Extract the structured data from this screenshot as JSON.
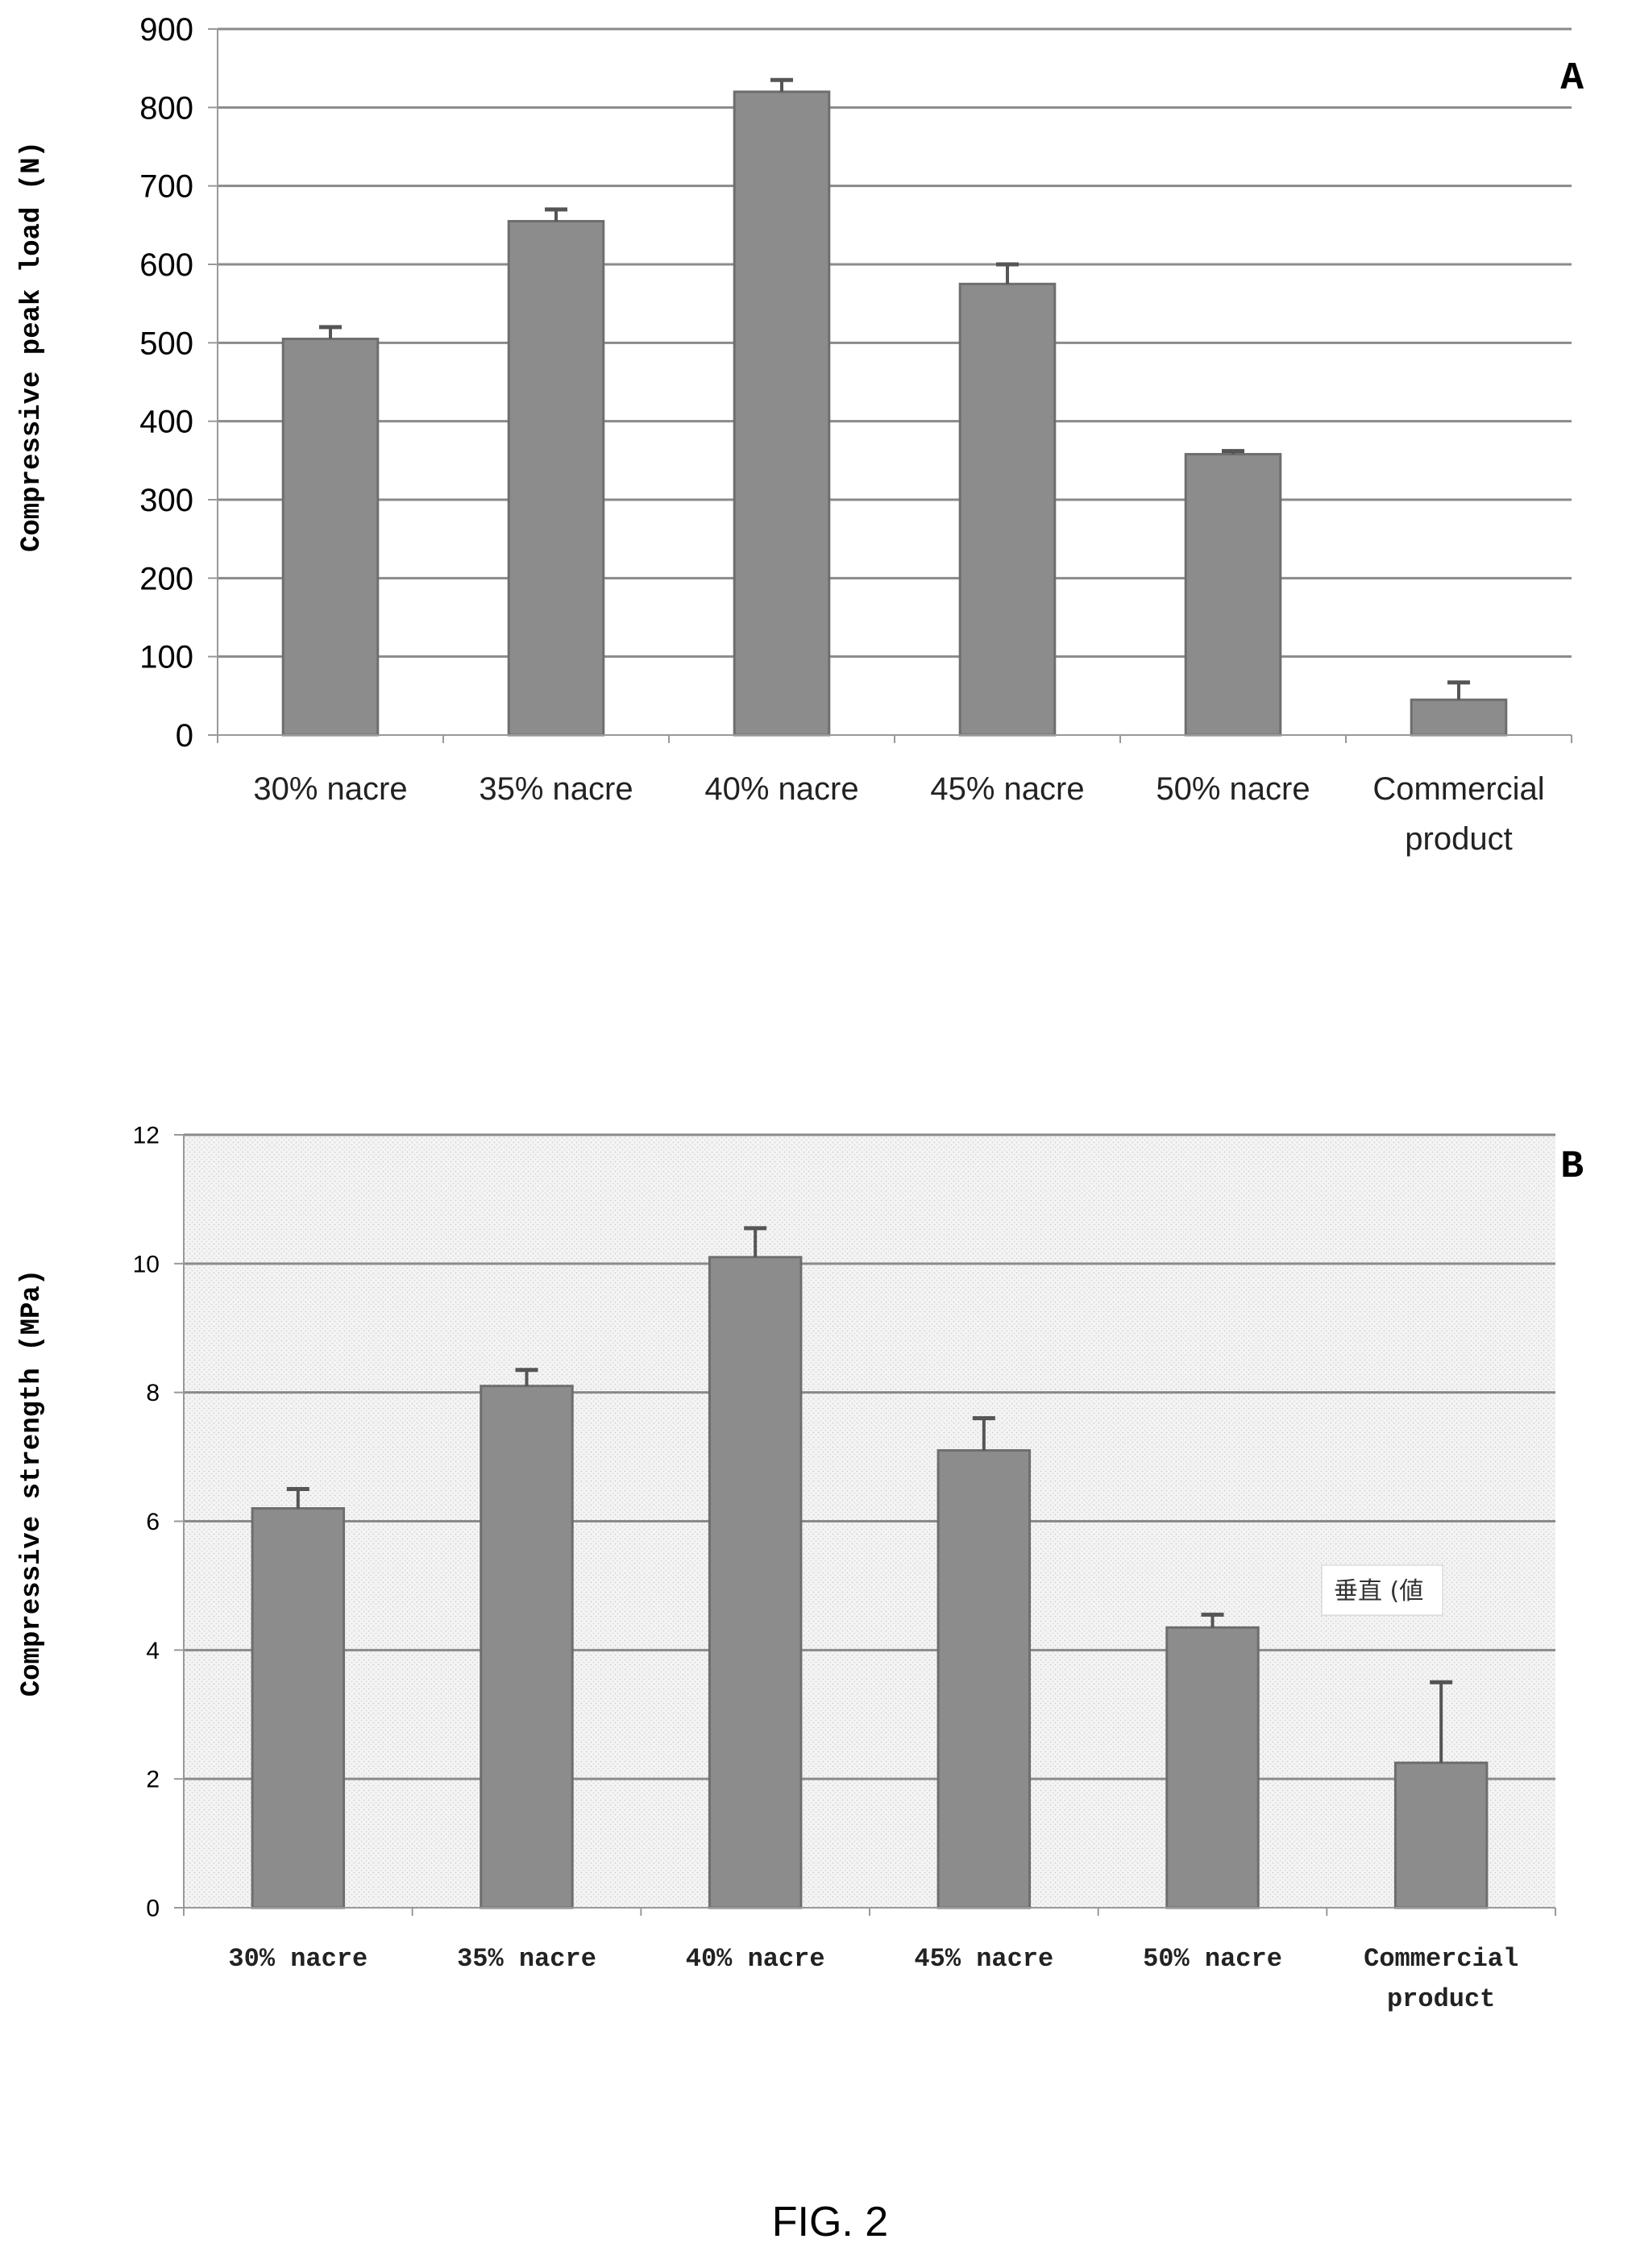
{
  "chart_data": [
    {
      "type": "bar",
      "panel_label": "A",
      "categories": [
        [
          "30% nacre"
        ],
        [
          "35% nacre"
        ],
        [
          "40% nacre"
        ],
        [
          "45% nacre"
        ],
        [
          "50% nacre"
        ],
        [
          "Commercial",
          "product"
        ]
      ],
      "values": [
        505,
        655,
        820,
        575,
        358,
        45
      ],
      "errors": [
        15,
        15,
        15,
        25,
        4,
        22
      ],
      "ylabel": "Compressive peak load (N)",
      "ylim": [
        0,
        900
      ],
      "yticks": [
        0,
        100,
        200,
        300,
        400,
        500,
        600,
        700,
        800,
        900
      ],
      "grid": true,
      "bar_color": "#8c8c8c"
    },
    {
      "type": "bar",
      "panel_label": "B",
      "categories": [
        [
          "30% nacre"
        ],
        [
          "35% nacre"
        ],
        [
          "40% nacre"
        ],
        [
          "45% nacre"
        ],
        [
          "50% nacre"
        ],
        [
          "Commercial",
          "product"
        ]
      ],
      "values": [
        6.2,
        8.1,
        10.1,
        7.1,
        4.35,
        2.25
      ],
      "errors": [
        0.3,
        0.25,
        0.45,
        0.5,
        0.2,
        1.25
      ],
      "ylabel": "Compressive strength (MPa)",
      "ylim": [
        0,
        12
      ],
      "yticks": [
        0,
        2,
        4,
        6,
        8,
        10,
        12
      ],
      "grid": true,
      "annotation": "垂直 (値",
      "bar_color": "#8c8c8c"
    }
  ],
  "figure_caption": "FIG. 2"
}
